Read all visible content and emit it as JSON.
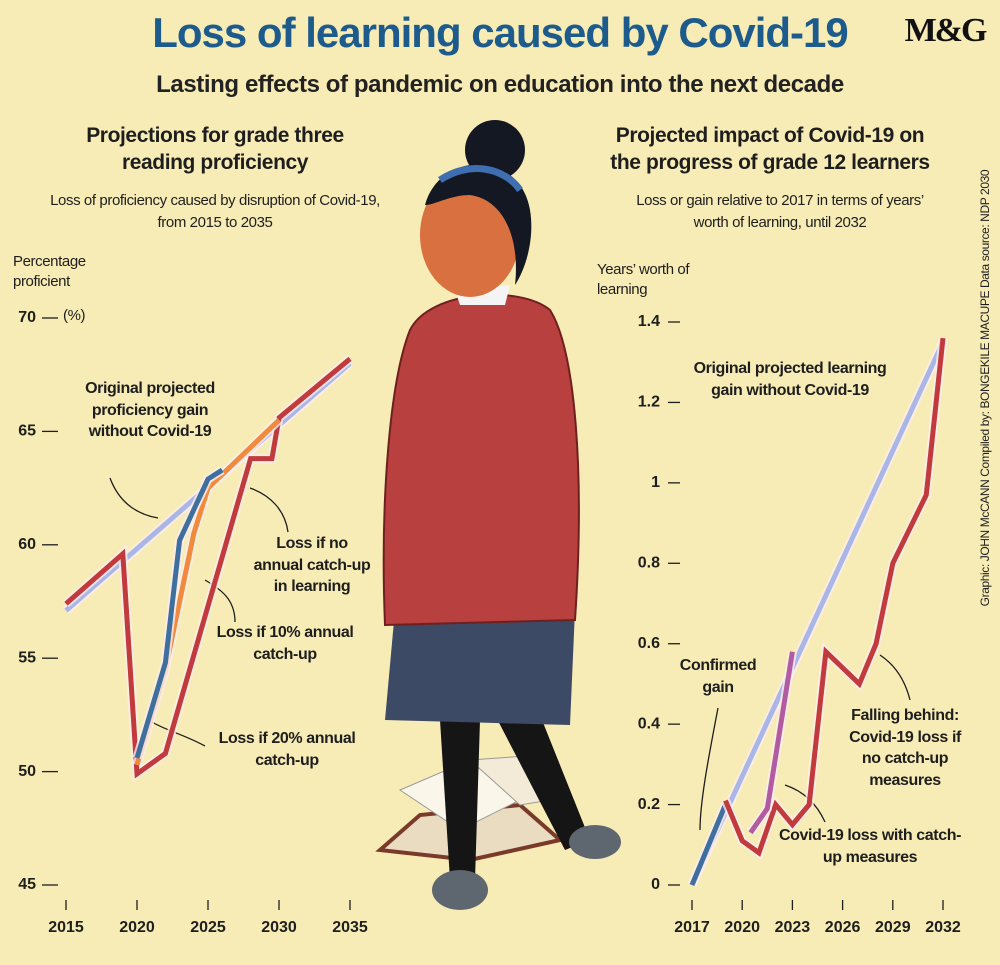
{
  "title": "Loss of learning caused by Covid-19",
  "subtitle": "Lasting effects of pandemic on education into the next decade",
  "logo": "M&G",
  "credit": "Graphic: JOHN McCANN  Compiled by: BONGEKILE MACUPE  Data source: NDP 2030",
  "chart_data": [
    {
      "type": "line",
      "title": "Projections for grade three reading proficiency",
      "subtitle": "Loss of proficiency caused by disruption of Covid-19, from 2015 to 2035",
      "ylabel": "Percentage proficient",
      "yunit": "(%)",
      "xlim": [
        2015,
        2035
      ],
      "xticks": [
        2015,
        2020,
        2025,
        2030,
        2035
      ],
      "ylim": [
        45,
        70
      ],
      "yticks": [
        45,
        50,
        55,
        60,
        65,
        70
      ],
      "series": [
        {
          "name": "Original projected proficiency gain without Covid-19",
          "color": "#a9b6e6",
          "x": [
            2015,
            2035
          ],
          "values": [
            57.1,
            68.0
          ]
        },
        {
          "name": "Loss if no annual catch-up in learning",
          "color": "#c13a3c",
          "x": [
            2015,
            2019,
            2020,
            2022,
            2028,
            2029.5,
            2030,
            2035
          ],
          "values": [
            57.4,
            59.6,
            49.9,
            50.8,
            63.8,
            63.8,
            65.6,
            68.2
          ]
        },
        {
          "name": "Loss if 10% annual catch-up",
          "color": "#f08a3c",
          "x": [
            2020,
            2022,
            2024,
            2025,
            2030
          ],
          "values": [
            50.3,
            54.5,
            60.5,
            62.5,
            65.5
          ]
        },
        {
          "name": "Loss if 20% annual catch-up",
          "color": "#3f6f9e",
          "x": [
            2020,
            2022,
            2023,
            2025,
            2026
          ],
          "values": [
            50.6,
            54.8,
            60.2,
            62.9,
            63.3
          ]
        }
      ]
    },
    {
      "type": "line",
      "title": "Projected impact of Covid-19 on the progress of grade 12 learners",
      "subtitle": "Loss or gain relative to 2017 in terms of years’ worth of learning, until 2032",
      "ylabel": "Years’ worth of learning",
      "xlim": [
        2017,
        2032
      ],
      "xticks": [
        2017,
        2020,
        2023,
        2026,
        2029,
        2032
      ],
      "ylim": [
        0,
        1.4
      ],
      "yticks": [
        0,
        0.2,
        0.4,
        0.6,
        0.8,
        1,
        1.2,
        1.4
      ],
      "series": [
        {
          "name": "Original projected learning gain without Covid-19",
          "color": "#a9b6e6",
          "x": [
            2017,
            2032
          ],
          "values": [
            0,
            1.35
          ]
        },
        {
          "name": "Confirmed gain",
          "color": "#3f6f9e",
          "x": [
            2017,
            2019
          ],
          "values": [
            0,
            0.2
          ]
        },
        {
          "name": "Falling behind: Covid-19 loss if no catch-up measures",
          "color": "#c13a3c",
          "x": [
            2019,
            2020,
            2021,
            2022,
            2023,
            2024,
            2025,
            2027,
            2028,
            2029,
            2031,
            2032
          ],
          "values": [
            0.21,
            0.11,
            0.08,
            0.2,
            0.15,
            0.2,
            0.58,
            0.5,
            0.6,
            0.8,
            0.97,
            1.36
          ]
        },
        {
          "name": "Covid-19 loss with catch-up measures",
          "color": "#b15ba0",
          "x": [
            2020.5,
            2021.5,
            2023
          ],
          "values": [
            0.13,
            0.19,
            0.58
          ]
        }
      ]
    }
  ]
}
